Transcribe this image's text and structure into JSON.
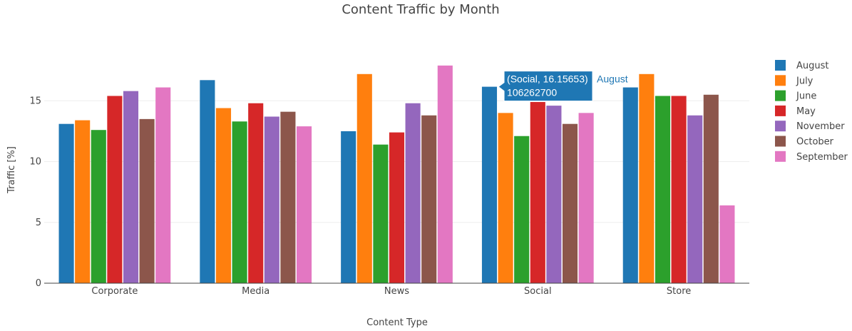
{
  "chart_data": {
    "type": "bar",
    "title": "Content Traffic by Month",
    "xlabel": "Content Type",
    "ylabel": "Traffic [%]",
    "categories": [
      "Corporate",
      "Media",
      "News",
      "Social",
      "Store"
    ],
    "ylim": [
      0,
      19.3
    ],
    "yticks": [
      0,
      5,
      10,
      15
    ],
    "grid": true,
    "legend_position": "right",
    "series": [
      {
        "name": "August",
        "color": "#1f77b4",
        "values": [
          13.1,
          16.7,
          12.5,
          16.15653,
          16.1
        ]
      },
      {
        "name": "July",
        "color": "#ff7f0e",
        "values": [
          13.4,
          14.4,
          17.2,
          14.0,
          17.2
        ]
      },
      {
        "name": "June",
        "color": "#2ca02c",
        "values": [
          12.6,
          13.3,
          11.4,
          12.1,
          15.4
        ]
      },
      {
        "name": "May",
        "color": "#d62728",
        "values": [
          15.4,
          14.8,
          12.4,
          14.9,
          15.4
        ]
      },
      {
        "name": "November",
        "color": "#9467bd",
        "values": [
          15.8,
          13.7,
          14.8,
          14.6,
          13.8
        ]
      },
      {
        "name": "October",
        "color": "#8c564b",
        "values": [
          13.5,
          14.1,
          13.8,
          13.1,
          15.5
        ]
      },
      {
        "name": "September",
        "color": "#e377c2",
        "values": [
          16.1,
          12.9,
          17.9,
          14.0,
          6.4
        ]
      }
    ],
    "tooltip": {
      "series": "August",
      "category": "Social",
      "line1": "(Social, 16.15653)",
      "line2": "106262700",
      "name": "August"
    }
  }
}
